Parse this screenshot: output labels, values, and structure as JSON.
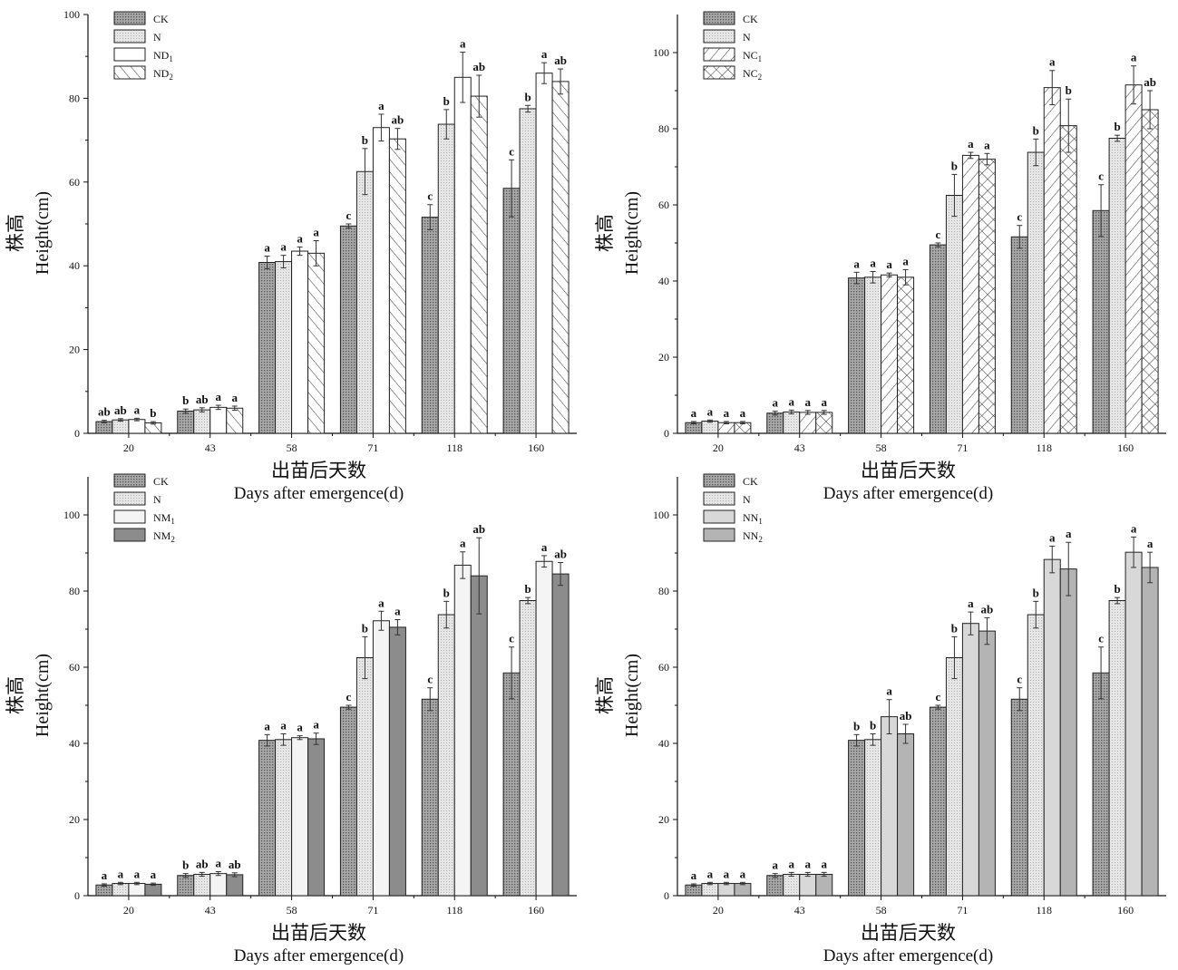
{
  "palette": {
    "ck_fill": "#9a9a9a",
    "n_fill": "#e6e6e6",
    "white": "#ffffff",
    "dark_fill": "#8c8c8c",
    "nn2_fill": "#b4b4b4",
    "stroke": "#222222"
  },
  "chart_data": [
    {
      "type": "bar",
      "ylabel_cn": "株高",
      "ylabel": "Height(cm)",
      "xlabel_cn": "出苗后天数",
      "xlabel": "Days after emergence(d)",
      "ylim": [
        0,
        100
      ],
      "yticks": [
        "0",
        "20",
        "40",
        "60",
        "80",
        "100"
      ],
      "categories": [
        "20",
        "43",
        "58",
        "71",
        "118",
        "160"
      ],
      "legend_position": "top-left",
      "series": [
        {
          "name": "CK",
          "pattern": "dots-dark",
          "values": [
            2.8,
            5.3,
            40.8,
            49.5,
            51.6,
            58.5
          ],
          "errors": [
            0.3,
            0.5,
            1.5,
            0.5,
            3.0,
            6.8
          ],
          "letters": [
            "ab",
            "b",
            "a",
            "c",
            "c",
            "c"
          ]
        },
        {
          "name": "N",
          "pattern": "dots-light",
          "values": [
            3.2,
            5.6,
            41.0,
            62.5,
            73.8,
            77.5
          ],
          "errors": [
            0.3,
            0.5,
            1.5,
            5.5,
            3.5,
            0.8
          ],
          "letters": [
            "ab",
            "ab",
            "a",
            "b",
            "b",
            "b"
          ]
        },
        {
          "name": "ND1",
          "pattern": "white",
          "values": [
            3.3,
            6.2,
            43.5,
            73.0,
            85.0,
            86.0
          ],
          "errors": [
            0.3,
            0.5,
            1.0,
            3.2,
            6.0,
            2.5
          ],
          "letters": [
            "a",
            "a",
            "a",
            "a",
            "a",
            "a"
          ]
        },
        {
          "name": "ND2",
          "pattern": "hatch-fwd",
          "values": [
            2.5,
            6.0,
            43.0,
            70.3,
            80.5,
            84.0
          ],
          "errors": [
            0.3,
            0.5,
            3.0,
            2.5,
            5.0,
            3.0
          ],
          "letters": [
            "b",
            "a",
            "a",
            "ab",
            "ab",
            "ab"
          ]
        }
      ]
    },
    {
      "type": "bar",
      "ylabel_cn": "株高",
      "ylabel": "Height(cm)",
      "xlabel_cn": "出苗后天数",
      "xlabel": "Days after emergence(d)",
      "ylim": [
        0,
        110
      ],
      "yticks": [
        "0",
        "20",
        "40",
        "60",
        "80",
        "100"
      ],
      "categories": [
        "20",
        "43",
        "58",
        "71",
        "118",
        "160"
      ],
      "legend_position": "top-left",
      "series": [
        {
          "name": "CK",
          "pattern": "dots-dark",
          "values": [
            2.8,
            5.3,
            40.8,
            49.5,
            51.6,
            58.5
          ],
          "errors": [
            0.3,
            0.5,
            1.5,
            0.5,
            3.0,
            6.8
          ],
          "letters": [
            "a",
            "a",
            "a",
            "c",
            "c",
            "c"
          ]
        },
        {
          "name": "N",
          "pattern": "dots-light",
          "values": [
            3.2,
            5.6,
            41.0,
            62.5,
            73.8,
            77.5
          ],
          "errors": [
            0.3,
            0.5,
            1.5,
            5.5,
            3.5,
            0.8
          ],
          "letters": [
            "a",
            "a",
            "a",
            "b",
            "b",
            "b"
          ]
        },
        {
          "name": "NC1",
          "pattern": "hatch-back",
          "values": [
            2.8,
            5.5,
            41.6,
            73.0,
            90.8,
            91.5
          ],
          "errors": [
            0.3,
            0.5,
            0.5,
            0.8,
            4.5,
            5.0
          ],
          "letters": [
            "a",
            "a",
            "a",
            "a",
            "a",
            "a"
          ]
        },
        {
          "name": "NC2",
          "pattern": "cross",
          "values": [
            2.8,
            5.5,
            41.0,
            72.0,
            80.8,
            85.0
          ],
          "errors": [
            0.3,
            0.5,
            2.0,
            1.5,
            7.0,
            5.0
          ],
          "letters": [
            "a",
            "a",
            "a",
            "a",
            "b",
            "ab"
          ]
        }
      ]
    },
    {
      "type": "bar",
      "ylabel_cn": "株高",
      "ylabel": "Height(cm)",
      "xlabel_cn": "出苗后天数",
      "xlabel": "Days after emergence(d)",
      "ylim": [
        0,
        110
      ],
      "yticks": [
        "0",
        "20",
        "40",
        "60",
        "80",
        "100"
      ],
      "categories": [
        "20",
        "43",
        "58",
        "71",
        "118",
        "160"
      ],
      "legend_position": "top-left",
      "series": [
        {
          "name": "CK",
          "pattern": "dots-dark",
          "values": [
            2.8,
            5.3,
            40.8,
            49.5,
            51.6,
            58.5
          ],
          "errors": [
            0.3,
            0.5,
            1.5,
            0.5,
            3.0,
            6.8
          ],
          "letters": [
            "a",
            "b",
            "a",
            "c",
            "c",
            "c"
          ]
        },
        {
          "name": "N",
          "pattern": "dots-light",
          "values": [
            3.2,
            5.6,
            41.0,
            62.5,
            73.8,
            77.5
          ],
          "errors": [
            0.3,
            0.5,
            1.5,
            5.5,
            3.5,
            0.8
          ],
          "letters": [
            "a",
            "ab",
            "a",
            "b",
            "b",
            "b"
          ]
        },
        {
          "name": "NM1",
          "pattern": "white-light",
          "values": [
            3.2,
            5.8,
            41.5,
            72.2,
            86.8,
            87.8
          ],
          "errors": [
            0.3,
            0.5,
            0.5,
            2.5,
            3.5,
            1.5
          ],
          "letters": [
            "a",
            "a",
            "a",
            "a",
            "a",
            "a"
          ]
        },
        {
          "name": "NM2",
          "pattern": "dark",
          "values": [
            3.0,
            5.5,
            41.2,
            70.5,
            84.0,
            84.5
          ],
          "errors": [
            0.3,
            0.5,
            1.5,
            2.0,
            10.0,
            3.0
          ],
          "letters": [
            "a",
            "ab",
            "a",
            "a",
            "ab",
            "ab"
          ]
        }
      ]
    },
    {
      "type": "bar",
      "ylabel_cn": "株高",
      "ylabel": "Height(cm)",
      "xlabel_cn": "出苗后天数",
      "xlabel": "Days after emergence(d)",
      "ylim": [
        0,
        110
      ],
      "yticks": [
        "0",
        "20",
        "40",
        "60",
        "80",
        "100"
      ],
      "categories": [
        "20",
        "43",
        "58",
        "71",
        "118",
        "160"
      ],
      "legend_position": "top-left",
      "series": [
        {
          "name": "CK",
          "pattern": "dots-dark",
          "values": [
            2.8,
            5.3,
            40.8,
            49.5,
            51.6,
            58.5
          ],
          "errors": [
            0.3,
            0.5,
            1.5,
            0.5,
            3.0,
            6.8
          ],
          "letters": [
            "a",
            "a",
            "b",
            "c",
            "c",
            "c"
          ]
        },
        {
          "name": "N",
          "pattern": "dots-light",
          "values": [
            3.2,
            5.6,
            41.0,
            62.5,
            73.8,
            77.5
          ],
          "errors": [
            0.3,
            0.5,
            1.5,
            5.5,
            3.5,
            0.8
          ],
          "letters": [
            "a",
            "a",
            "b",
            "b",
            "b",
            "b"
          ]
        },
        {
          "name": "NN1",
          "pattern": "light-gray",
          "values": [
            3.2,
            5.6,
            47.0,
            71.5,
            88.3,
            90.2
          ],
          "errors": [
            0.3,
            0.5,
            4.5,
            3.0,
            3.5,
            4.0
          ],
          "letters": [
            "a",
            "a",
            "a",
            "a",
            "a",
            "a"
          ]
        },
        {
          "name": "NN2",
          "pattern": "mid-gray",
          "values": [
            3.2,
            5.6,
            42.5,
            69.5,
            85.8,
            86.2
          ],
          "errors": [
            0.3,
            0.5,
            2.5,
            3.5,
            7.0,
            4.0
          ],
          "letters": [
            "a",
            "a",
            "ab",
            "ab",
            "a",
            "a"
          ]
        }
      ]
    }
  ]
}
